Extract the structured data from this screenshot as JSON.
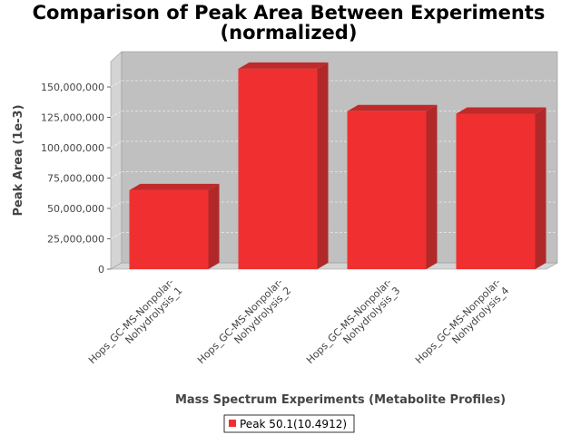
{
  "chart_data": {
    "type": "bar",
    "title_lines": [
      "Comparison of Peak Area Between Experiments",
      "(normalized)"
    ],
    "xlabel": "Mass Spectrum Experiments (Metabolite Profiles)",
    "ylabel": "Peak Area (1e-3)",
    "categories": [
      [
        "Hops_GC-MS-Nonpolar-",
        "Nohydrolysis_1"
      ],
      [
        "Hops_GC-MS-Nonpolar-",
        "Nohydrolysis_2"
      ],
      [
        "Hops_GC-MS-Nonpolar-",
        "Nohydrolysis_3"
      ],
      [
        "Hops_GC-MS-Nonpolar-",
        "Nohydrolysis_4"
      ]
    ],
    "series": [
      {
        "name": "Peak 50.1(10.4912)",
        "color": "#f03030",
        "values": [
          65000000,
          165000000,
          130000000,
          128000000
        ]
      }
    ],
    "ylim": [
      0,
      175000000
    ],
    "yticks": [
      0,
      25000000,
      50000000,
      75000000,
      100000000,
      125000000,
      150000000
    ],
    "ytick_labels": [
      "0",
      "25,000,000",
      "50,000,000",
      "75,000,000",
      "100,000,000",
      "125,000,000",
      "150,000,000"
    ],
    "grid": true,
    "legend_position": "bottom-center",
    "style": "3d"
  }
}
